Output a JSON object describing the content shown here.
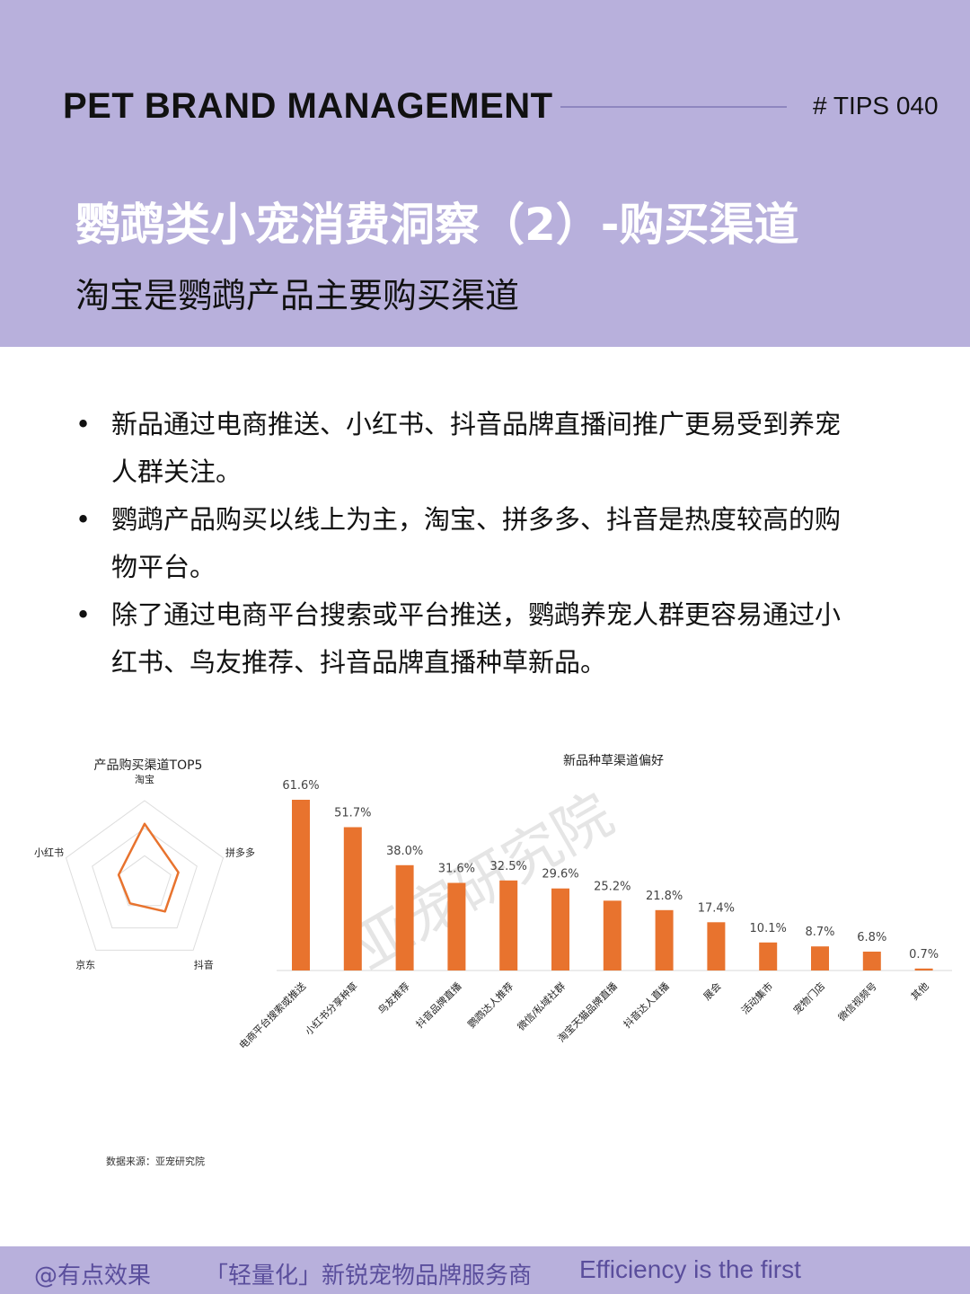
{
  "header": {
    "brand": "PET BRAND  MANAGEMENT",
    "tips": "# TIPS 040",
    "title": "鹦鹉类小宠消费洞察（2）-购买渠道",
    "subtitle": "淘宝是鹦鹉产品主要购买渠道"
  },
  "bullets": [
    "新品通过电商推送、小红书、抖音品牌直播间推广更易受到养宠人群关注。",
    "鹦鹉产品购买以线上为主，淘宝、拼多多、抖音是热度较高的购物平台。",
    "除了通过电商平台搜索或平台推送，鹦鹉养宠人群更容易通过小红书、鸟友推荐、抖音品牌直播种草新品。"
  ],
  "bullet_symbol": "•",
  "watermark": "亚宠研究院",
  "source": "数据来源：亚宠研究院",
  "footer": {
    "handle": "@有点效果",
    "slogan": "「轻量化」新锐宠物品牌服务商",
    "motto": "Efficiency is the first"
  },
  "colors": {
    "header_bg": "#b8b0dc",
    "accent": "#e8732e",
    "footer_text": "#5a4e9c"
  },
  "chart_data": [
    {
      "type": "radar",
      "title": "产品购买渠道TOP5",
      "categories": [
        "淘宝",
        "拼多多",
        "抖音",
        "京东",
        "小红书"
      ],
      "values": [
        0.72,
        0.43,
        0.42,
        0.3,
        0.33
      ],
      "scale": [
        0,
        1
      ]
    },
    {
      "type": "bar",
      "title": "新品种草渠道偏好",
      "categories": [
        "电商平台搜索或推送",
        "小红书分享种草",
        "鸟友推荐",
        "抖音品牌直播",
        "鹦鹉达人推荐",
        "微信/私域社群",
        "淘宝天猫品牌直播",
        "抖音达人直播",
        "展会",
        "活动集市",
        "宠物门店",
        "微信视频号",
        "其他"
      ],
      "values": [
        61.6,
        51.7,
        38.0,
        31.6,
        32.5,
        29.6,
        25.2,
        21.8,
        17.4,
        10.1,
        8.7,
        6.8,
        0.7
      ],
      "labels": [
        "61.6%",
        "51.7%",
        "38.0%",
        "31.6%",
        "32.5%",
        "29.6%",
        "25.2%",
        "21.8%",
        "17.4%",
        "10.1%",
        "8.7%",
        "6.8%",
        "0.7%"
      ],
      "ylim": [
        0,
        70
      ],
      "xlabel": "",
      "ylabel": ""
    }
  ]
}
